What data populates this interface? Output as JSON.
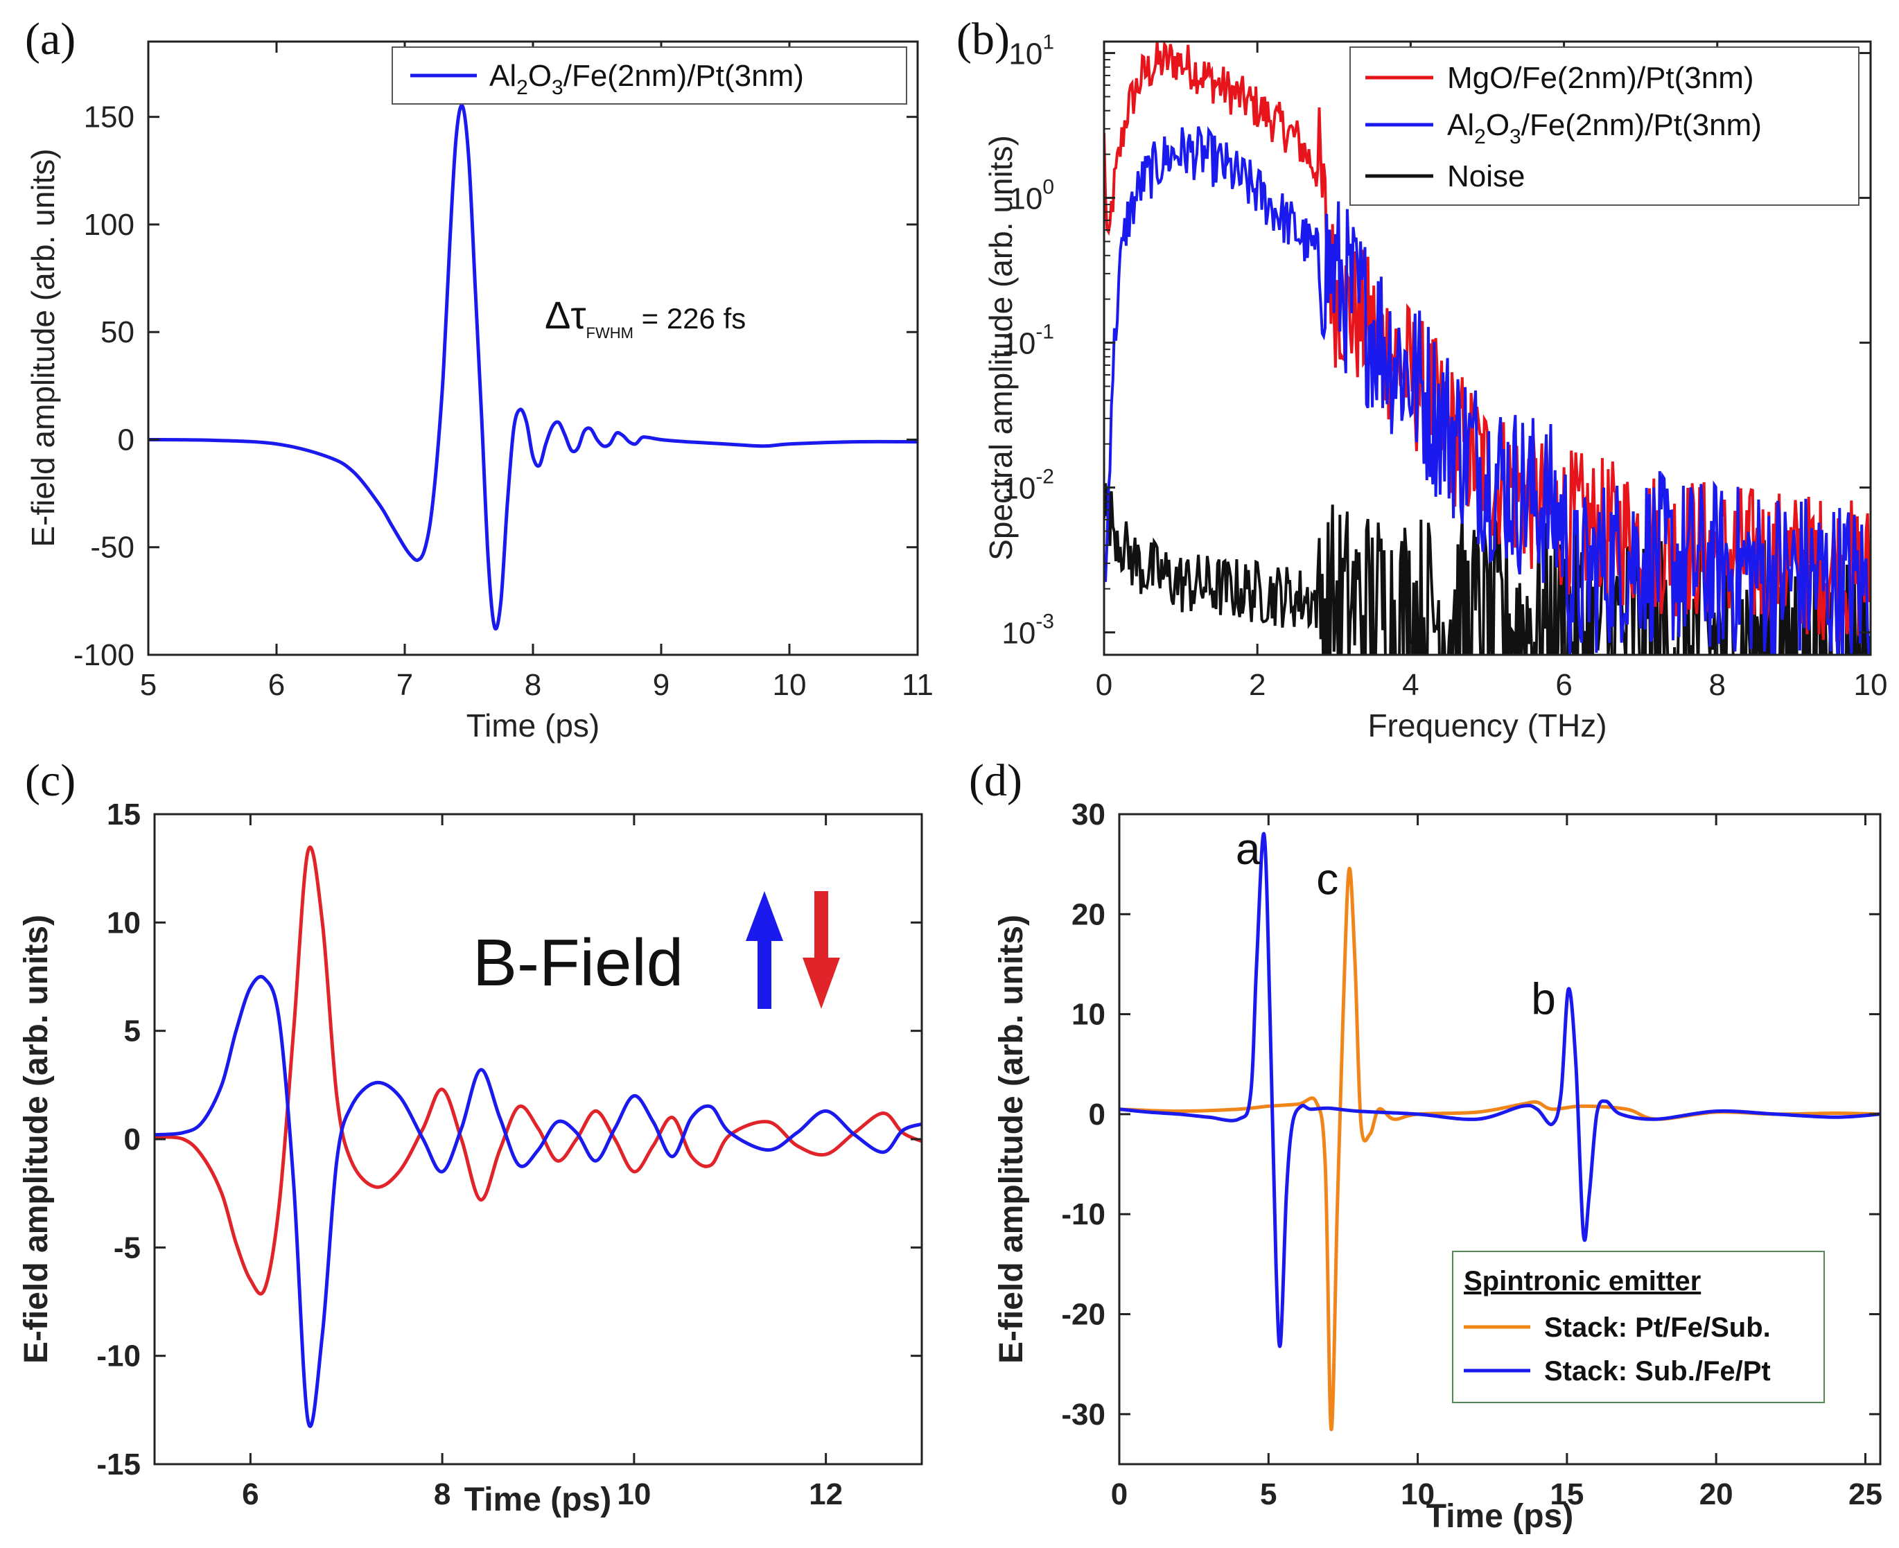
{
  "panels": [
    {
      "label": "(a)",
      "chart_data": {
        "type": "line",
        "xlabel": "Time (ps)",
        "ylabel": "E-field amplitude (arb. units)",
        "xlim": [
          5,
          11
        ],
        "ylim": [
          -100,
          185
        ],
        "xticks": [
          5,
          6,
          7,
          8,
          9,
          10,
          11
        ],
        "yticks": [
          -100,
          -50,
          0,
          50,
          100,
          150
        ],
        "legend_position": "top-right",
        "annotation": {
          "main": "Δτ",
          "sub": "FWHM",
          "rest": " = 226 fs",
          "x": 7.7,
          "y": 60
        },
        "series": [
          {
            "name": "Al2O3/Fe(2nm)/Pt(3nm)",
            "legend_parts": [
              "Al",
              "2",
              "O",
              "3",
              "/Fe(2nm)/Pt(3nm)"
            ],
            "color": "#1a1aee",
            "x": [
              5.0,
              5.5,
              6.0,
              6.4,
              6.6,
              6.8,
              6.9,
              7.0,
              7.05,
              7.1,
              7.15,
              7.2,
              7.25,
              7.3,
              7.35,
              7.4,
              7.45,
              7.5,
              7.55,
              7.6,
              7.65,
              7.7,
              7.75,
              7.8,
              7.85,
              7.9,
              7.95,
              8.0,
              8.05,
              8.1,
              8.15,
              8.2,
              8.25,
              8.3,
              8.35,
              8.4,
              8.45,
              8.5,
              8.55,
              8.6,
              8.65,
              8.7,
              8.75,
              8.8,
              8.85,
              8.9,
              9.0,
              9.2,
              9.5,
              9.8,
              10.0,
              10.5,
              11.0
            ],
            "values": [
              0,
              -0.3,
              -2,
              -8,
              -15,
              -30,
              -40,
              -50,
              -54,
              -56,
              -52,
              -38,
              -10,
              30,
              90,
              140,
              155,
              130,
              70,
              10,
              -55,
              -87,
              -75,
              -30,
              5,
              14,
              8,
              -8,
              -12,
              -2,
              6,
              8,
              2,
              -5,
              -4,
              4,
              5,
              0,
              -3,
              -2,
              3,
              2,
              -1,
              -2,
              1,
              1,
              0,
              -1,
              -2,
              -3,
              -2,
              -1,
              -1
            ]
          }
        ]
      }
    },
    {
      "label": "(b)",
      "chart_data": {
        "type": "line",
        "xlabel": "Frequency (THz)",
        "ylabel": "Spectral amplitude (arb. units)",
        "xlim": [
          0,
          10
        ],
        "ylim": [
          0.0007,
          12
        ],
        "yscale": "log",
        "xticks": [
          0,
          2,
          4,
          6,
          8,
          10
        ],
        "yticks_labels": [
          [
            "10",
            "1"
          ],
          [
            "10",
            "0"
          ],
          [
            "10",
            "-1"
          ],
          [
            "10",
            "-2"
          ],
          [
            "10",
            "-3"
          ]
        ],
        "legend_position": "top-right",
        "series": [
          {
            "name": "MgO/Fe(2nm)/Pt(3nm)",
            "legend_parts": [
              "MgO/Fe(2nm)/Pt(3nm)"
            ],
            "color": "#e8141b",
            "x": [
              0.0,
              0.05,
              0.1,
              0.2,
              0.3,
              0.5,
              0.7,
              0.9,
              1.1,
              1.5,
              2.0,
              2.5,
              2.8,
              3.0,
              3.2,
              3.5,
              4.0,
              4.5,
              5.0,
              5.5,
              6.0,
              6.5,
              7.0,
              7.5,
              8.0,
              8.5,
              9.0,
              9.5,
              10.0
            ],
            "values": [
              2.5,
              0.35,
              0.9,
              2.0,
              4.0,
              7.0,
              8.5,
              9.0,
              8.2,
              6.0,
              4.2,
              2.6,
              1.5,
              0.22,
              0.17,
              0.12,
              0.06,
              0.025,
              0.013,
              0.0085,
              0.006,
              0.005,
              0.0045,
              0.004,
              0.0035,
              0.0032,
              0.003,
              0.0028,
              0.0025
            ],
            "noise": 0.32
          },
          {
            "name": "Al2O3/Fe(2nm)/Pt(3nm)",
            "legend_parts": [
              "Al",
              "2",
              "O",
              "3",
              "/Fe(2nm)/Pt(3nm)"
            ],
            "color": "#1a1aee",
            "x": [
              0.0,
              0.02,
              0.1,
              0.2,
              0.3,
              0.5,
              0.8,
              1.0,
              1.3,
              1.6,
              2.0,
              2.5,
              3.0,
              3.5,
              4.0,
              4.5,
              5.0,
              5.5,
              5.8,
              6.0,
              6.1,
              6.5,
              7.0,
              7.5,
              8.0,
              8.5,
              9.0,
              9.5,
              10.0
            ],
            "values": [
              0.003,
              0.002,
              0.05,
              0.3,
              0.7,
              1.3,
              1.9,
              2.1,
              2.0,
              1.6,
              1.1,
              0.6,
              0.3,
              0.13,
              0.06,
              0.025,
              0.013,
              0.009,
              0.0075,
              0.0055,
              0.002,
              0.003,
              0.0035,
              0.003,
              0.0028,
              0.0026,
              0.0025,
              0.0022,
              0.002
            ],
            "noise": 0.38
          },
          {
            "name": "Noise",
            "legend_parts": [
              "Noise"
            ],
            "color": "#111111",
            "x": [
              0.0,
              0.1,
              0.3,
              0.5,
              1.0,
              2.0,
              3.0,
              4.0,
              5.0,
              6.0,
              7.0,
              8.0,
              9.0,
              10.0
            ],
            "values": [
              0.008,
              0.006,
              0.0035,
              0.0028,
              0.0022,
              0.0019,
              0.0016,
              0.0014,
              0.0012,
              0.0011,
              0.001,
              0.0009,
              0.00085,
              0.0008
            ],
            "noise": 0.45
          }
        ]
      }
    },
    {
      "label": "(c)",
      "chart_data": {
        "type": "line",
        "xlabel": "Time (ps)",
        "ylabel": "E-field amplitude (arb. units)",
        "xlim": [
          5,
          13
        ],
        "ylim": [
          -15,
          15
        ],
        "xticks": [
          6,
          8,
          10,
          12
        ],
        "yticks": [
          -15,
          -10,
          -5,
          0,
          5,
          10,
          15
        ],
        "annotation": {
          "text": "B-Field",
          "arrows": [
            "up-blue",
            "down-red"
          ]
        },
        "series": [
          {
            "name": "B-Field up",
            "color": "#1a1aee",
            "x": [
              5.0,
              5.3,
              5.5,
              5.7,
              5.85,
              6.0,
              6.15,
              6.3,
              6.45,
              6.6,
              6.75,
              6.9,
              7.05,
              7.3,
              7.55,
              7.8,
              8.0,
              8.2,
              8.4,
              8.6,
              8.8,
              9.0,
              9.2,
              9.4,
              9.6,
              9.8,
              10.0,
              10.2,
              10.4,
              10.6,
              10.8,
              11.0,
              11.4,
              11.7,
              12.0,
              12.3,
              12.6,
              12.8,
              13.0
            ],
            "values": [
              0.2,
              0.3,
              0.8,
              2.5,
              5.0,
              7.0,
              7.4,
              5.5,
              -2.0,
              -13.0,
              -9.0,
              -1.0,
              1.5,
              2.6,
              2.0,
              0.0,
              -1.5,
              0.5,
              3.2,
              1.0,
              -1.2,
              -0.5,
              0.8,
              0.3,
              -1.0,
              0.5,
              2.0,
              0.8,
              -0.8,
              1.0,
              1.5,
              0.3,
              -0.5,
              0.3,
              1.3,
              0.2,
              -0.6,
              0.4,
              0.7
            ]
          },
          {
            "name": "B-Field down",
            "color": "#e0242a",
            "x": [
              5.0,
              5.3,
              5.5,
              5.7,
              5.85,
              6.0,
              6.15,
              6.3,
              6.45,
              6.6,
              6.75,
              6.9,
              7.05,
              7.3,
              7.55,
              7.8,
              8.0,
              8.2,
              8.4,
              8.6,
              8.8,
              9.0,
              9.2,
              9.4,
              9.6,
              9.8,
              10.0,
              10.2,
              10.4,
              10.6,
              10.8,
              11.0,
              11.4,
              11.7,
              12.0,
              12.3,
              12.6,
              12.8,
              13.0
            ],
            "values": [
              0.1,
              0.0,
              -0.8,
              -2.5,
              -4.8,
              -6.5,
              -6.9,
              -3.0,
              5.0,
              13.3,
              10.0,
              2.0,
              -1.0,
              -2.2,
              -1.5,
              0.5,
              2.3,
              0.0,
              -2.8,
              -0.5,
              1.5,
              0.5,
              -1.0,
              0.0,
              1.3,
              0.0,
              -1.5,
              -0.3,
              1.0,
              -0.8,
              -1.2,
              0.2,
              0.8,
              -0.3,
              -0.7,
              0.3,
              1.2,
              0.3,
              -0.1
            ]
          }
        ]
      }
    },
    {
      "label": "(d)",
      "chart_data": {
        "type": "line",
        "xlabel": "Time (ps)",
        "ylabel": "E-field amplitude (arb. units)",
        "xlim": [
          0,
          25.5
        ],
        "ylim": [
          -35,
          30
        ],
        "xticks": [
          0,
          5,
          10,
          15,
          20,
          25
        ],
        "yticks": [
          -30,
          -20,
          -10,
          0,
          10,
          20,
          30
        ],
        "legend_position": "bottom-right",
        "legend_title": "Spintronic emitter",
        "peak_labels": [
          {
            "text": "a",
            "x": 3.9,
            "y": 25,
            "color": "#1a1aee"
          },
          {
            "text": "c",
            "x": 6.6,
            "y": 22,
            "color": "#f0851a"
          },
          {
            "text": "b",
            "x": 13.8,
            "y": 10,
            "color": "#1a1aee"
          }
        ],
        "series": [
          {
            "name": "Stack: Pt/Fe/Sub.",
            "color": "#f0851a",
            "x": [
              0,
              2,
              4,
              5,
              6,
              6.6,
              6.9,
              7.1,
              7.3,
              7.5,
              7.7,
              7.9,
              8.1,
              8.4,
              8.7,
              9.2,
              10,
              12,
              13.5,
              14,
              14.5,
              15.5,
              17,
              18,
              20,
              22,
              24,
              25.5
            ],
            "values": [
              0.5,
              0.3,
              0.5,
              0.8,
              1.0,
              1.2,
              -5,
              -31.5,
              -10,
              10,
              24.5,
              15,
              -1,
              -2,
              0.5,
              -0.5,
              0,
              0.2,
              1.0,
              1.2,
              0.5,
              0.8,
              0.5,
              -0.5,
              0.2,
              0,
              0.1,
              0
            ]
          },
          {
            "name": "Stack: Sub./Fe/Pt",
            "color": "#1a1aee",
            "x": [
              0,
              1,
              2,
              3,
              4,
              4.4,
              4.6,
              4.85,
              5.05,
              5.25,
              5.4,
              5.6,
              5.8,
              6.1,
              6.4,
              7,
              8,
              10,
              12,
              13.5,
              14,
              14.5,
              14.8,
              15.05,
              15.3,
              15.55,
              15.75,
              16,
              16.3,
              16.8,
              18,
              20,
              22,
              24,
              25.5
            ],
            "values": [
              0.5,
              0.2,
              0,
              -0.3,
              -0.5,
              2,
              15,
              28,
              10,
              -15,
              -23,
              -8,
              -1,
              0.8,
              0.5,
              0.6,
              0.3,
              0,
              -0.5,
              0.8,
              0.5,
              -1,
              2,
              12.5,
              5,
              -12,
              -8,
              0,
              1.3,
              0,
              -0.5,
              0.3,
              0,
              -0.3,
              0
            ]
          }
        ]
      }
    }
  ]
}
